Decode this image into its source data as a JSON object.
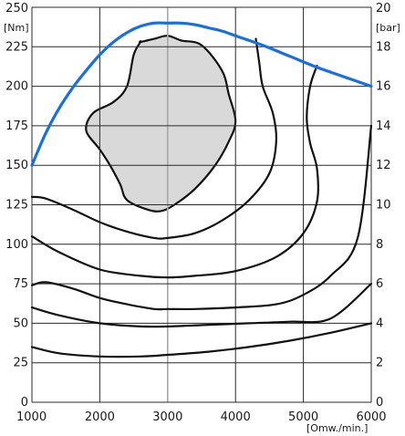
{
  "chart_data": {
    "type": "line",
    "title": "",
    "x_unit_label": "[Omw./min.]",
    "y_left_unit_label": "[Nm]",
    "y_right_unit_label": "[bar]",
    "xlim": [
      1000,
      6000
    ],
    "ylim_left": [
      0,
      250
    ],
    "ylim_right": [
      0,
      20
    ],
    "x_ticks": [
      "1000",
      "2000",
      "3000",
      "4000",
      "5000",
      "6000"
    ],
    "y_left_ticks": [
      "0",
      "25",
      "50",
      "75",
      "100",
      "125",
      "150",
      "175",
      "200",
      "225",
      "250"
    ],
    "y_right_ticks": [
      "0",
      "2",
      "4",
      "6",
      "8",
      "10",
      "12",
      "14",
      "16",
      "18",
      "20"
    ],
    "grid": true,
    "colors": {
      "max_torque": "#1a6fe0",
      "contours": "#111111",
      "optimum_region": "#d9d9d9"
    },
    "max_torque_curve": {
      "x": [
        1000,
        1200,
        1400,
        1600,
        1800,
        2000,
        2200,
        2400,
        2600,
        2800,
        3000,
        3200,
        3400,
        3600,
        3800,
        4000,
        4400,
        4800,
        5200,
        5600,
        6000
      ],
      "y": [
        150,
        170,
        186,
        199,
        210,
        220,
        228,
        234,
        238,
        240,
        240,
        240,
        239,
        237,
        235,
        232,
        226,
        219,
        212,
        206,
        200
      ]
    },
    "optimum_region": {
      "x": [
        2600,
        2800,
        3000,
        3200,
        3500,
        3800,
        3900,
        4000,
        3900,
        3700,
        3400,
        3100,
        2900,
        2700,
        2400,
        2300,
        2150,
        2000,
        1800,
        1900,
        2200,
        2400,
        2500,
        2600
      ],
      "y": [
        228,
        230,
        232,
        229,
        226,
        210,
        195,
        178,
        165,
        150,
        135,
        125,
        121,
        122,
        128,
        138,
        150,
        160,
        172,
        183,
        190,
        200,
        220,
        228
      ]
    },
    "contours": [
      {
        "x": [
          1000,
          1200,
          1600,
          2000,
          2400,
          2800,
          3000,
          3400,
          3800,
          4200,
          4500,
          4600,
          4550,
          4400,
          4350,
          4300
        ],
        "y": [
          130,
          129,
          122,
          114,
          108,
          104,
          104,
          107,
          115,
          128,
          145,
          165,
          183,
          200,
          215,
          230
        ]
      },
      {
        "x": [
          1000,
          1400,
          2000,
          2600,
          3000,
          3400,
          4000,
          4600,
          5000,
          5200,
          5200,
          5100,
          5050,
          5100,
          5200
        ],
        "y": [
          105,
          95,
          84,
          80,
          79,
          80,
          83,
          92,
          107,
          127,
          148,
          164,
          180,
          200,
          213
        ]
      },
      {
        "x": [
          1000,
          1200,
          1600,
          2000,
          2400,
          2800,
          3000,
          3400,
          4000,
          4600,
          5000,
          5400,
          5800,
          6000
        ],
        "y": [
          74,
          76,
          72,
          66,
          62,
          59,
          59,
          59,
          60,
          62,
          68,
          80,
          104,
          175
        ]
      },
      {
        "x": [
          1000,
          1400,
          2000,
          2600,
          3000,
          3600,
          4200,
          4800,
          5400,
          6000
        ],
        "y": [
          60,
          55,
          50,
          48,
          48,
          49,
          50,
          51,
          53,
          75
        ]
      },
      {
        "x": [
          1000,
          1400,
          2000,
          2600,
          3000,
          3600,
          4200,
          4800,
          5400,
          6000
        ],
        "y": [
          35,
          31,
          29,
          29,
          30,
          32,
          35,
          39,
          44,
          50
        ]
      }
    ]
  }
}
